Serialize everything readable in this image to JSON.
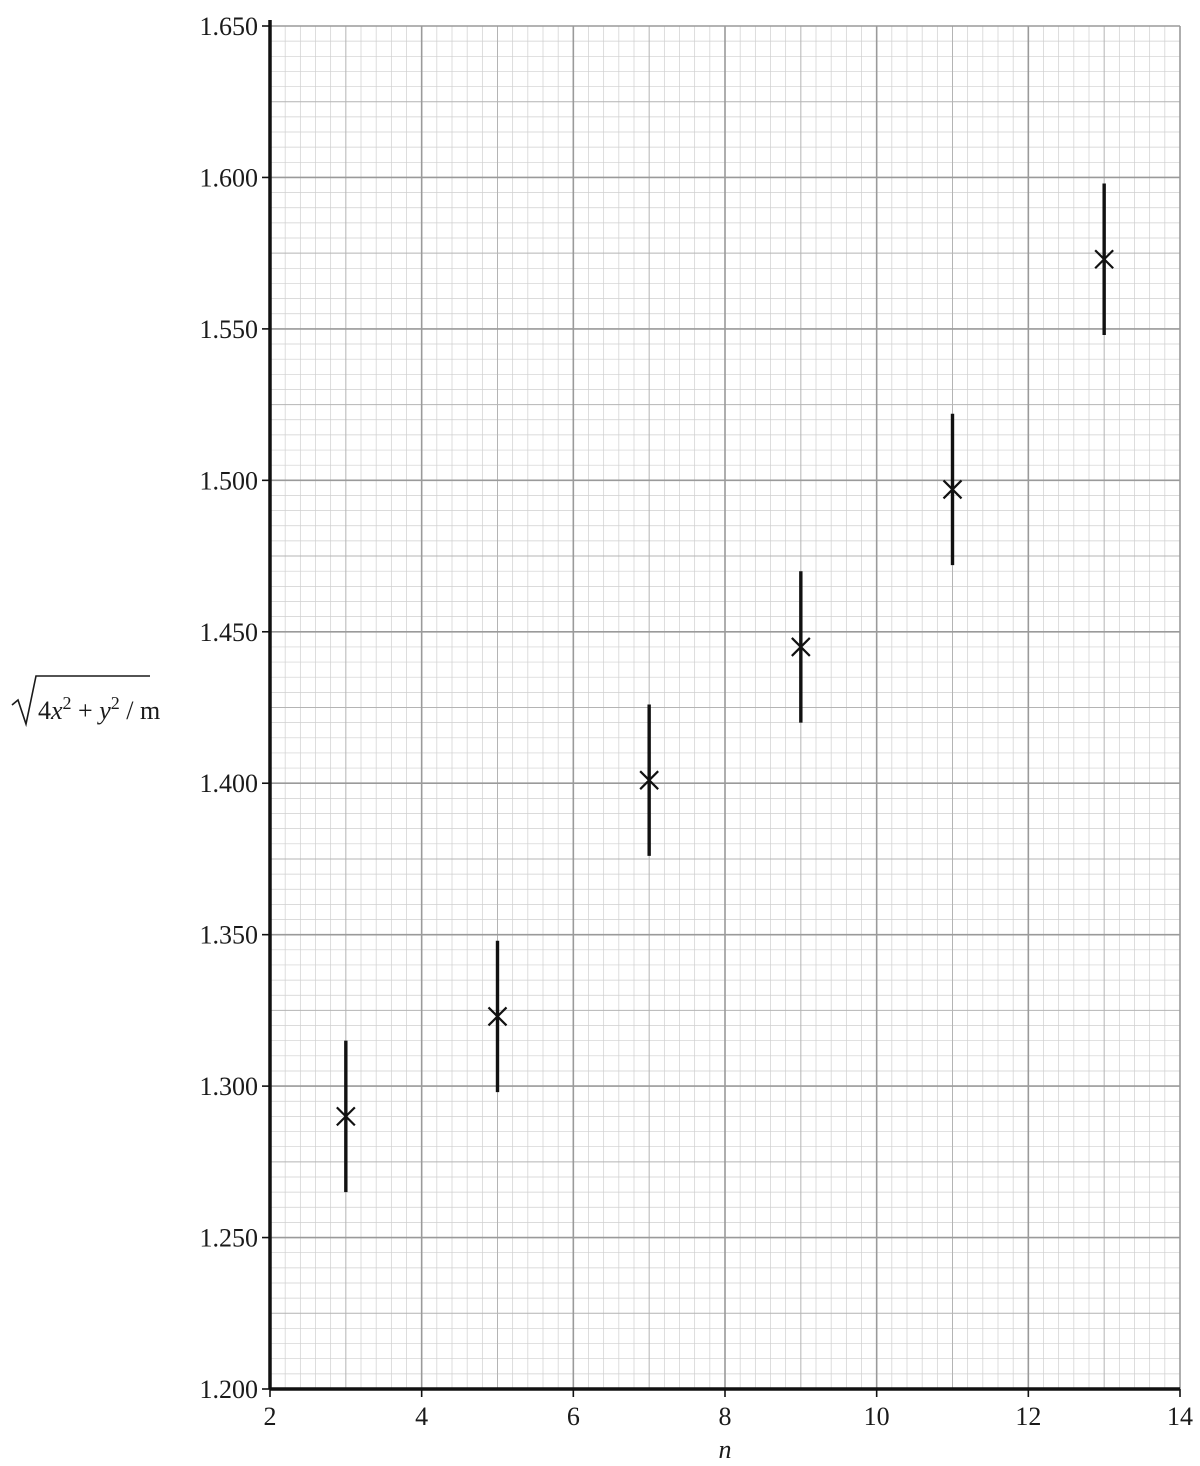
{
  "chart_data": {
    "type": "scatter",
    "title": "",
    "xlabel": "n",
    "ylabel": {
      "radicand_parts": [
        "4",
        "x",
        "2",
        " + ",
        "y",
        "2"
      ],
      "unit": " / m"
    },
    "xlim": [
      2,
      14
    ],
    "ylim": [
      1.2,
      1.65
    ],
    "x_ticks": [
      "2",
      "4",
      "6",
      "8",
      "10",
      "12",
      "14"
    ],
    "y_ticks": [
      "1.200",
      "1.250",
      "1.300",
      "1.350",
      "1.400",
      "1.450",
      "1.500",
      "1.550",
      "1.600",
      "1.650"
    ],
    "grid": true,
    "marker": "x",
    "error_bars": "vertical",
    "points": [
      {
        "x": 3,
        "y": 1.29,
        "err": 0.025
      },
      {
        "x": 5,
        "y": 1.323,
        "err": 0.025
      },
      {
        "x": 7,
        "y": 1.401,
        "err": 0.025
      },
      {
        "x": 9,
        "y": 1.445,
        "err": 0.025
      },
      {
        "x": 11,
        "y": 1.497,
        "err": 0.025
      },
      {
        "x": 13,
        "y": 1.573,
        "err": 0.025
      }
    ]
  }
}
